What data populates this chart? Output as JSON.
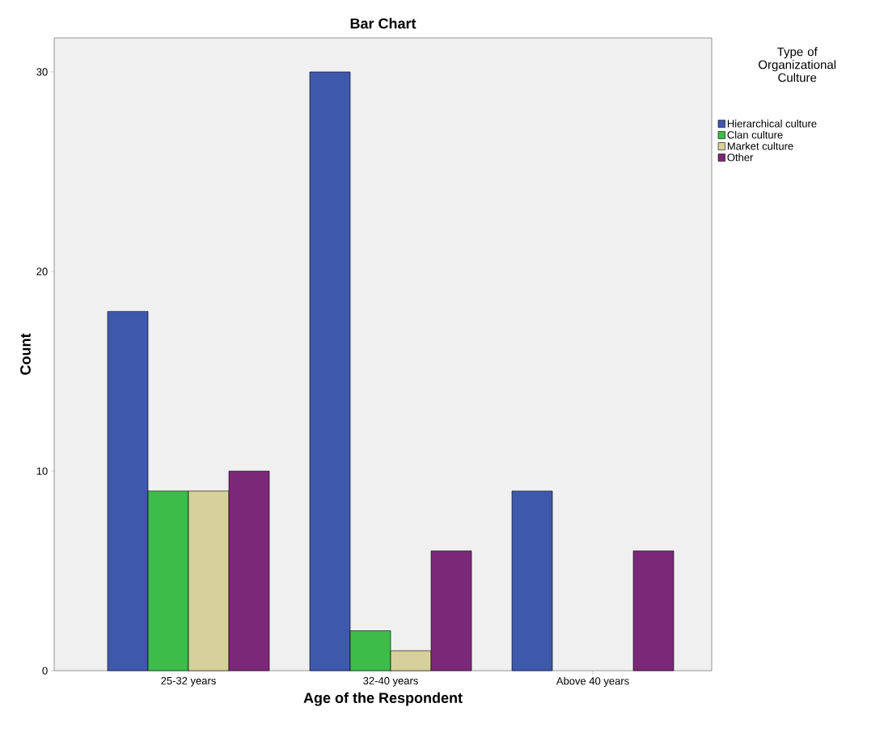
{
  "chart_data": {
    "type": "bar",
    "title": "Bar Chart",
    "xlabel": "Age of the Respondent",
    "ylabel": "Count",
    "legend_title": "Type of Organizational Culture",
    "categories": [
      "25-32 years",
      "32-40 years",
      "Above 40 years"
    ],
    "series": [
      {
        "name": "Hierarchical culture",
        "color": "#3e58ac",
        "values": [
          18,
          30,
          9
        ]
      },
      {
        "name": "Clan culture",
        "color": "#3ebc4a",
        "values": [
          9,
          2,
          null
        ]
      },
      {
        "name": "Market culture",
        "color": "#d6d09a",
        "values": [
          9,
          1,
          null
        ]
      },
      {
        "name": "Other",
        "color": "#7c2878",
        "values": [
          10,
          6,
          6
        ]
      }
    ],
    "ylim": [
      0,
      31.7
    ],
    "yticks": [
      0,
      10,
      20,
      30
    ],
    "legend": "top right"
  }
}
